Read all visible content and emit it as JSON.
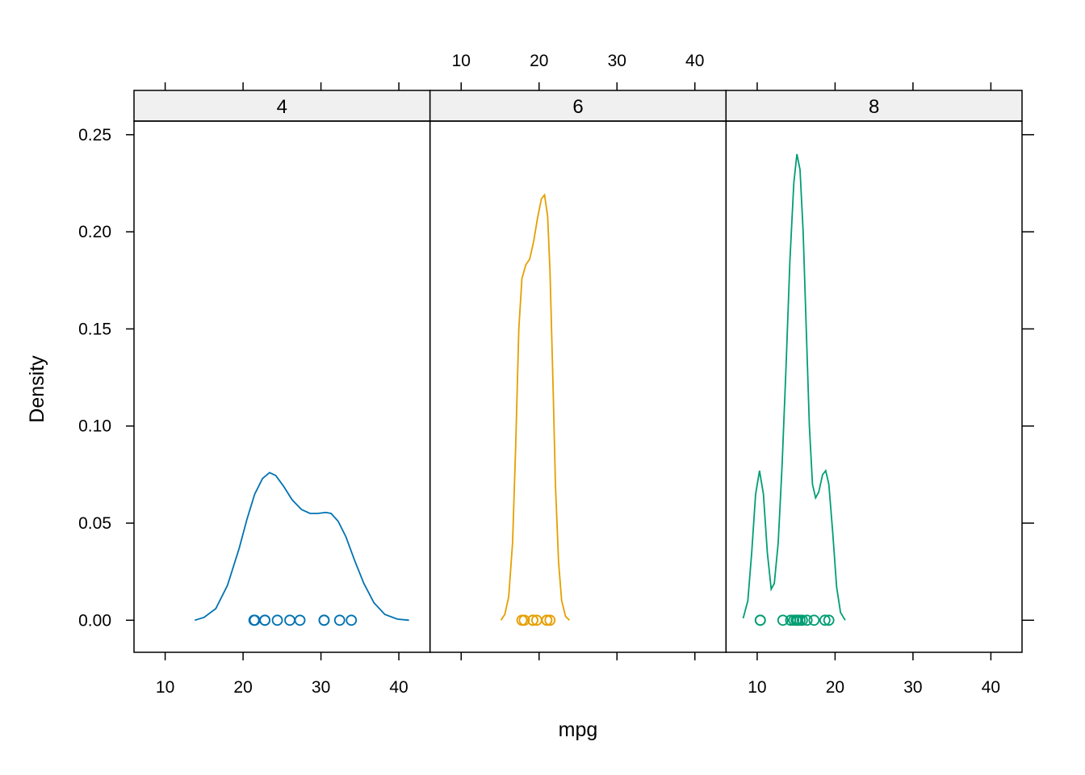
{
  "chart_data": {
    "type": "line",
    "xlabel": "mpg",
    "ylabel": "Density",
    "xlim": [
      6,
      44
    ],
    "ylim": [
      -0.0165,
      0.257
    ],
    "x_ticks": [
      10,
      20,
      30,
      40
    ],
    "y_ticks": [
      0.0,
      0.05,
      0.1,
      0.15,
      0.2,
      0.25
    ],
    "y_tick_labels": [
      "0.00",
      "0.05",
      "0.10",
      "0.15",
      "0.20",
      "0.25"
    ],
    "colors": {
      "4": "#0072B2",
      "6": "#E69F00",
      "8": "#009E73",
      "strip_bg": "#f0f0f0"
    },
    "panels": [
      {
        "label": "4",
        "color": "#0072B2",
        "points": [
          21.4,
          21.5,
          22.8,
          22.8,
          24.4,
          26.0,
          27.3,
          30.4,
          30.4,
          32.4,
          33.9
        ],
        "curve": [
          [
            13.8,
            0.0
          ],
          [
            15.0,
            0.0015
          ],
          [
            16.5,
            0.006
          ],
          [
            18.0,
            0.018
          ],
          [
            19.5,
            0.037
          ],
          [
            20.5,
            0.052
          ],
          [
            21.5,
            0.065
          ],
          [
            22.5,
            0.073
          ],
          [
            23.4,
            0.076
          ],
          [
            24.2,
            0.0745
          ],
          [
            25.2,
            0.069
          ],
          [
            26.3,
            0.062
          ],
          [
            27.5,
            0.057
          ],
          [
            28.6,
            0.055
          ],
          [
            29.6,
            0.055
          ],
          [
            30.6,
            0.0555
          ],
          [
            31.3,
            0.055
          ],
          [
            32.2,
            0.051
          ],
          [
            33.2,
            0.043
          ],
          [
            34.3,
            0.031
          ],
          [
            35.5,
            0.019
          ],
          [
            36.8,
            0.009
          ],
          [
            38.2,
            0.003
          ],
          [
            39.8,
            0.0006
          ],
          [
            41.3,
            0.0
          ]
        ]
      },
      {
        "label": "6",
        "color": "#E69F00",
        "points": [
          17.8,
          18.1,
          19.2,
          19.2,
          19.7,
          21.0,
          21.0,
          21.4
        ],
        "curve": [
          [
            15.1,
            0.0
          ],
          [
            15.6,
            0.003
          ],
          [
            16.1,
            0.012
          ],
          [
            16.6,
            0.04
          ],
          [
            17.0,
            0.09
          ],
          [
            17.4,
            0.15
          ],
          [
            17.8,
            0.176
          ],
          [
            18.3,
            0.183
          ],
          [
            18.8,
            0.186
          ],
          [
            19.3,
            0.195
          ],
          [
            19.8,
            0.207
          ],
          [
            20.3,
            0.217
          ],
          [
            20.7,
            0.219
          ],
          [
            21.1,
            0.208
          ],
          [
            21.4,
            0.18
          ],
          [
            21.8,
            0.12
          ],
          [
            22.1,
            0.07
          ],
          [
            22.5,
            0.03
          ],
          [
            22.9,
            0.01
          ],
          [
            23.4,
            0.002
          ],
          [
            23.9,
            0.0
          ]
        ]
      },
      {
        "label": "8",
        "color": "#009E73",
        "points": [
          10.4,
          10.4,
          13.3,
          14.3,
          14.7,
          15.0,
          15.2,
          15.2,
          15.5,
          15.8,
          16.4,
          17.3,
          18.7,
          19.2
        ],
        "curve": [
          [
            8.2,
            0.001
          ],
          [
            8.8,
            0.01
          ],
          [
            9.3,
            0.035
          ],
          [
            9.8,
            0.065
          ],
          [
            10.3,
            0.077
          ],
          [
            10.8,
            0.065
          ],
          [
            11.3,
            0.035
          ],
          [
            11.8,
            0.016
          ],
          [
            12.2,
            0.019
          ],
          [
            12.7,
            0.04
          ],
          [
            13.2,
            0.08
          ],
          [
            13.7,
            0.13
          ],
          [
            14.2,
            0.185
          ],
          [
            14.7,
            0.225
          ],
          [
            15.1,
            0.24
          ],
          [
            15.5,
            0.232
          ],
          [
            15.9,
            0.2
          ],
          [
            16.3,
            0.15
          ],
          [
            16.7,
            0.1
          ],
          [
            17.1,
            0.07
          ],
          [
            17.5,
            0.063
          ],
          [
            17.9,
            0.066
          ],
          [
            18.4,
            0.075
          ],
          [
            18.8,
            0.077
          ],
          [
            19.2,
            0.07
          ],
          [
            19.7,
            0.045
          ],
          [
            20.2,
            0.017
          ],
          [
            20.7,
            0.004
          ],
          [
            21.3,
            0.0
          ]
        ]
      }
    ]
  }
}
